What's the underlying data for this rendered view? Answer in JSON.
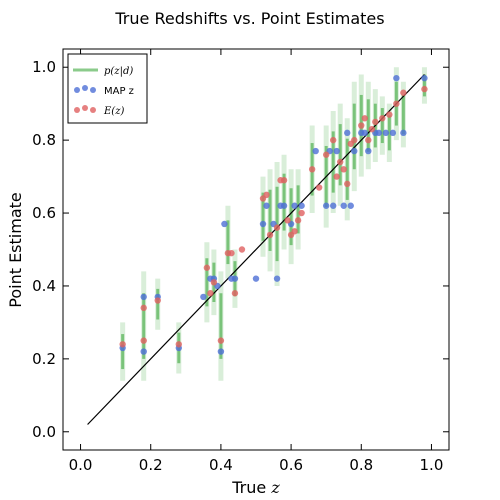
{
  "chart_data": {
    "type": "scatter",
    "title": "True Redshifts vs. Point Estimates",
    "xlabel_text": "True ",
    "xlabel_var": "z",
    "ylabel": "Point Estimate",
    "xlim": [
      -0.05,
      1.05
    ],
    "ylim": [
      -0.05,
      1.05
    ],
    "xticks": [
      "0.0",
      "0.2",
      "0.4",
      "0.6",
      "0.8",
      "1.0"
    ],
    "yticks": [
      "0.0",
      "0.2",
      "0.4",
      "0.6",
      "0.8",
      "1.0"
    ],
    "xtick_values": [
      0.0,
      0.2,
      0.4,
      0.6,
      0.8,
      1.0
    ],
    "ytick_values": [
      0.0,
      0.2,
      0.4,
      0.6,
      0.8,
      1.0
    ],
    "grid": false,
    "legend_position": "top-left",
    "colors": {
      "pdf": "#2ca02c",
      "map": "#4d6fd6",
      "mean": "#e06060",
      "line": "#000000"
    },
    "legend": [
      {
        "label": "p(z|d)",
        "marker": "line"
      },
      {
        "label": "MAP z",
        "marker": "dots-blue"
      },
      {
        "label": "E(z)",
        "marker": "dots-red"
      }
    ],
    "identity_line": {
      "x": [
        0.02,
        0.98
      ],
      "y": [
        0.02,
        0.98
      ]
    },
    "series": [
      {
        "name": "MAP z",
        "x": [
          0.12,
          0.18,
          0.18,
          0.22,
          0.28,
          0.35,
          0.37,
          0.38,
          0.39,
          0.4,
          0.41,
          0.43,
          0.44,
          0.5,
          0.52,
          0.53,
          0.55,
          0.56,
          0.57,
          0.58,
          0.6,
          0.61,
          0.63,
          0.67,
          0.7,
          0.71,
          0.72,
          0.73,
          0.75,
          0.76,
          0.77,
          0.78,
          0.8,
          0.81,
          0.82,
          0.84,
          0.85,
          0.87,
          0.89,
          0.9,
          0.92,
          0.98
        ],
        "y": [
          0.23,
          0.22,
          0.37,
          0.37,
          0.23,
          0.37,
          0.42,
          0.42,
          0.4,
          0.22,
          0.57,
          0.42,
          0.42,
          0.42,
          0.57,
          0.62,
          0.57,
          0.42,
          0.62,
          0.62,
          0.57,
          0.62,
          0.62,
          0.77,
          0.62,
          0.77,
          0.62,
          0.77,
          0.62,
          0.82,
          0.62,
          0.77,
          0.82,
          0.82,
          0.77,
          0.82,
          0.82,
          0.82,
          0.82,
          0.97,
          0.82,
          0.97
        ]
      },
      {
        "name": "E(z)",
        "x": [
          0.12,
          0.18,
          0.18,
          0.22,
          0.28,
          0.36,
          0.37,
          0.38,
          0.4,
          0.42,
          0.43,
          0.44,
          0.46,
          0.52,
          0.53,
          0.54,
          0.56,
          0.57,
          0.58,
          0.59,
          0.6,
          0.61,
          0.62,
          0.63,
          0.66,
          0.68,
          0.7,
          0.72,
          0.73,
          0.74,
          0.75,
          0.76,
          0.77,
          0.78,
          0.8,
          0.81,
          0.82,
          0.83,
          0.84,
          0.86,
          0.88,
          0.9,
          0.92,
          0.98
        ],
        "y": [
          0.24,
          0.25,
          0.34,
          0.36,
          0.24,
          0.45,
          0.38,
          0.41,
          0.25,
          0.49,
          0.49,
          0.38,
          0.5,
          0.64,
          0.65,
          0.54,
          0.56,
          0.69,
          0.69,
          0.58,
          0.54,
          0.55,
          0.58,
          0.6,
          0.72,
          0.67,
          0.76,
          0.8,
          0.7,
          0.74,
          0.72,
          0.68,
          0.79,
          0.8,
          0.84,
          0.86,
          0.8,
          0.83,
          0.85,
          0.86,
          0.87,
          0.9,
          0.93,
          0.94
        ]
      },
      {
        "name": "p(z|d)",
        "x": [
          0.12,
          0.18,
          0.22,
          0.28,
          0.36,
          0.38,
          0.4,
          0.42,
          0.44,
          0.52,
          0.54,
          0.56,
          0.58,
          0.6,
          0.62,
          0.66,
          0.7,
          0.72,
          0.74,
          0.76,
          0.78,
          0.8,
          0.82,
          0.84,
          0.86,
          0.88,
          0.9,
          0.92,
          0.98
        ],
        "y_low": [
          0.14,
          0.14,
          0.28,
          0.16,
          0.3,
          0.32,
          0.14,
          0.42,
          0.34,
          0.48,
          0.44,
          0.4,
          0.5,
          0.46,
          0.5,
          0.6,
          0.56,
          0.6,
          0.62,
          0.58,
          0.66,
          0.7,
          0.72,
          0.74,
          0.76,
          0.74,
          0.8,
          0.78,
          0.9
        ],
        "y_high": [
          0.3,
          0.44,
          0.42,
          0.3,
          0.52,
          0.5,
          0.44,
          0.62,
          0.5,
          0.7,
          0.72,
          0.74,
          0.76,
          0.72,
          0.72,
          0.84,
          0.84,
          0.88,
          0.9,
          0.86,
          0.96,
          0.98,
          0.96,
          0.94,
          0.92,
          0.9,
          1.0,
          0.96,
          1.0
        ]
      }
    ]
  }
}
